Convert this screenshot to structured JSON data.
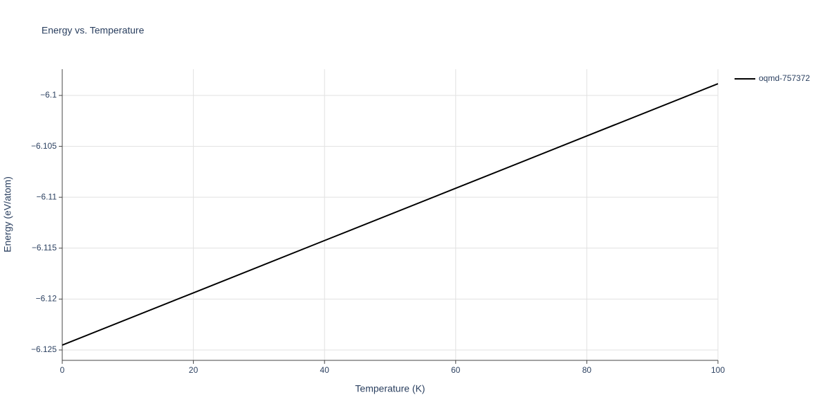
{
  "chart_data": {
    "type": "line",
    "title": "Energy vs. Temperature",
    "x_label": "Temperature (K)",
    "y_label": "Energy (eV/atom)",
    "x": [
      0,
      20,
      40,
      60,
      80,
      100
    ],
    "series": [
      {
        "name": "oqmd-757372",
        "color": "#000000",
        "values": [
          -6.12452,
          -6.11939,
          -6.11425,
          -6.10912,
          -6.10398,
          -6.09885
        ]
      }
    ],
    "xlim": [
      0,
      100
    ],
    "xticks": [
      0,
      20,
      40,
      60,
      80,
      100
    ],
    "ylim": [
      -6.12602,
      -6.09742
    ],
    "yticks": [
      {
        "value": -6.125,
        "label": "−6.125"
      },
      {
        "value": -6.12,
        "label": "−6.12"
      },
      {
        "value": -6.115,
        "label": "−6.115"
      },
      {
        "value": -6.11,
        "label": "−6.11"
      },
      {
        "value": -6.105,
        "label": "−6.105"
      },
      {
        "value": -6.1,
        "label": "−6.1"
      }
    ],
    "grid": true,
    "legend": "right"
  }
}
